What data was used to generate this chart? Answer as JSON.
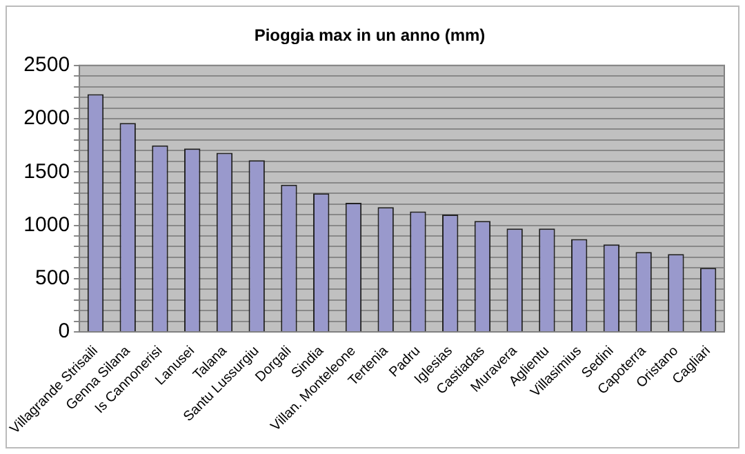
{
  "chart_data": {
    "type": "bar",
    "title": "Pioggia max in un anno (mm)",
    "categories": [
      "Villagrande Strisaili",
      "Genna Silana",
      "Is Cannonerisi",
      "Lanusei",
      "Talana",
      "Santu Lussurgiu",
      "Dorgali",
      "Sindia",
      "Villan. Monteleone",
      "Tertenia",
      "Padru",
      "Iglesias",
      "Castiadas",
      "Muravera",
      "Aglientu",
      "Villasimius",
      "Sedini",
      "Capoterra",
      "Oristano",
      "Cagliari"
    ],
    "values": [
      2230,
      1960,
      1750,
      1720,
      1680,
      1610,
      1380,
      1300,
      1210,
      1170,
      1130,
      1100,
      1040,
      970,
      970,
      870,
      820,
      750,
      730,
      600
    ],
    "color": "#9999cc",
    "ylim": [
      0,
      2500
    ],
    "yticks": [
      0,
      {
        "value": 100,
        "label": null
      },
      {
        "value": 200,
        "label": null
      },
      {
        "value": 300,
        "label": null
      },
      {
        "value": 400,
        "label": null
      },
      500,
      {
        "value": 600,
        "label": null
      },
      {
        "value": 700,
        "label": null
      },
      {
        "value": 800,
        "label": null
      },
      {
        "value": 900,
        "label": null
      },
      1000,
      {
        "value": 1100,
        "label": null
      },
      {
        "value": 1200,
        "label": null
      },
      {
        "value": 1300,
        "label": null
      },
      {
        "value": 1400,
        "label": null
      },
      1500,
      {
        "value": 1600,
        "label": null
      },
      {
        "value": 1700,
        "label": null
      },
      {
        "value": 1800,
        "label": null
      },
      {
        "value": 1900,
        "label": null
      },
      2000,
      {
        "value": 2100,
        "label": null
      },
      {
        "value": 2200,
        "label": null
      },
      {
        "value": 2300,
        "label": null
      },
      {
        "value": 2400,
        "label": null
      },
      2500
    ],
    "grid": "y",
    "legend": false
  }
}
